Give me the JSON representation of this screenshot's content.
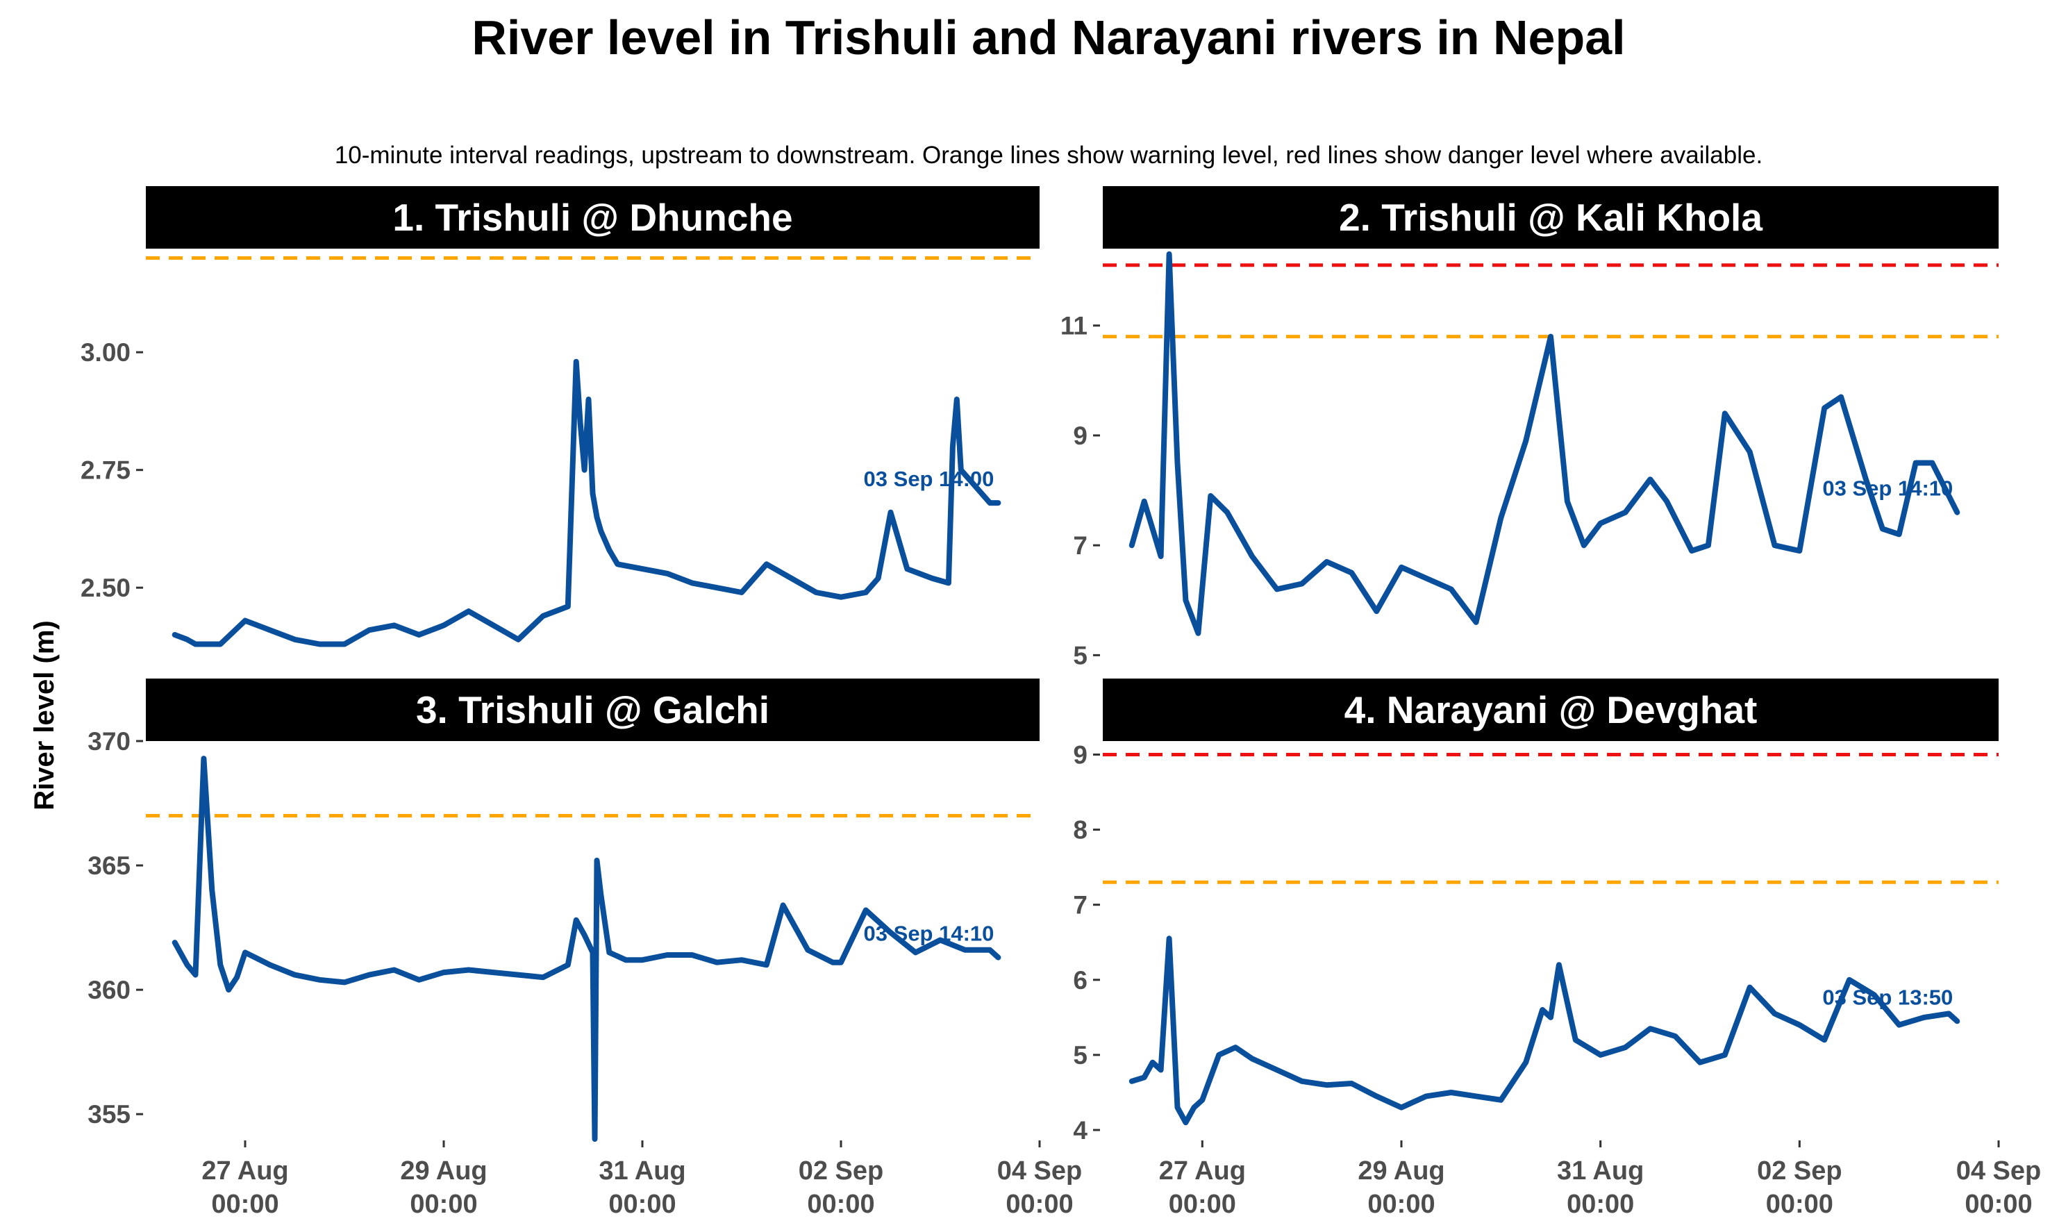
{
  "title": "River level in Trishuli and Narayani rivers in Nepal",
  "subtitle": "10-minute interval readings, upstream to downstream. Orange lines show warning level, red lines show danger level where available.",
  "y_axis_label": "River level (m)",
  "colors": {
    "series": "#0a4f9c",
    "warning": "#ffa500",
    "danger": "#ee1111",
    "strip": "#000000",
    "strip_text": "#ffffff",
    "tick_text": "#4d4d4d"
  },
  "x_ticks": [
    {
      "x": "2024-08-27T00:00",
      "line1": "27 Aug",
      "line2": "00:00"
    },
    {
      "x": "2024-08-29T00:00",
      "line1": "29 Aug",
      "line2": "00:00"
    },
    {
      "x": "2024-08-31T00:00",
      "line1": "31 Aug",
      "line2": "00:00"
    },
    {
      "x": "2024-09-02T00:00",
      "line1": "02 Sep",
      "line2": "00:00"
    },
    {
      "x": "2024-09-04T00:00",
      "line1": "04 Sep",
      "line2": "00:00"
    }
  ],
  "chart_data": [
    {
      "type": "line",
      "panel_title": "1. Trishuli @ Dhunche",
      "xlim": [
        "2024-08-26T00:00",
        "2024-09-04T00:00"
      ],
      "ylim": [
        2.31,
        3.22
      ],
      "y_ticks": [
        2.5,
        2.75,
        3.0
      ],
      "y_tick_labels": [
        "2.50",
        "2.75",
        "3.00"
      ],
      "warning": 3.2,
      "danger": null,
      "last_label": "03 Sep 14:00",
      "series": [
        {
          "x": [
            "2024-08-26T07:00",
            "2024-08-26T10:00",
            "2024-08-26T12:00",
            "2024-08-26T18:00",
            "2024-08-27T00:00",
            "2024-08-27T06:00",
            "2024-08-27T12:00",
            "2024-08-27T18:00",
            "2024-08-28T00:00",
            "2024-08-28T06:00",
            "2024-08-28T12:00",
            "2024-08-28T18:00",
            "2024-08-29T00:00",
            "2024-08-29T06:00",
            "2024-08-29T12:00",
            "2024-08-29T18:00",
            "2024-08-30T00:00",
            "2024-08-30T06:00",
            "2024-08-30T08:00",
            "2024-08-30T09:00",
            "2024-08-30T10:00",
            "2024-08-30T11:00",
            "2024-08-30T12:00",
            "2024-08-30T13:00",
            "2024-08-30T14:00",
            "2024-08-30T16:00",
            "2024-08-30T18:00",
            "2024-08-31T00:00",
            "2024-08-31T06:00",
            "2024-08-31T12:00",
            "2024-08-31T18:00",
            "2024-09-01T00:00",
            "2024-09-01T06:00",
            "2024-09-01T12:00",
            "2024-09-01T18:00",
            "2024-09-02T00:00",
            "2024-09-02T06:00",
            "2024-09-02T09:00",
            "2024-09-02T12:00",
            "2024-09-02T16:00",
            "2024-09-02T22:00",
            "2024-09-03T02:00",
            "2024-09-03T03:00",
            "2024-09-03T04:00",
            "2024-09-03T05:00",
            "2024-09-03T08:00",
            "2024-09-03T12:00",
            "2024-09-03T14:00"
          ],
          "values": [
            2.4,
            2.39,
            2.38,
            2.38,
            2.43,
            2.41,
            2.39,
            2.38,
            2.38,
            2.41,
            2.42,
            2.4,
            2.42,
            2.45,
            2.42,
            2.39,
            2.44,
            2.46,
            2.98,
            2.85,
            2.75,
            2.9,
            2.7,
            2.65,
            2.62,
            2.58,
            2.55,
            2.54,
            2.53,
            2.51,
            2.5,
            2.49,
            2.55,
            2.52,
            2.49,
            2.48,
            2.49,
            2.52,
            2.66,
            2.54,
            2.52,
            2.51,
            2.8,
            2.9,
            2.75,
            2.72,
            2.68,
            2.68
          ]
        }
      ]
    },
    {
      "type": "line",
      "panel_title": "2. Trishuli @ Kali Khola",
      "xlim": [
        "2024-08-26T00:00",
        "2024-09-04T00:00"
      ],
      "ylim": [
        4.6,
        12.4
      ],
      "y_ticks": [
        5,
        7,
        9,
        11
      ],
      "y_tick_labels": [
        "5",
        "7",
        "9",
        "11"
      ],
      "warning": 10.8,
      "danger": 12.1,
      "last_label": "03 Sep 14:10",
      "series": [
        {
          "x": [
            "2024-08-26T07:00",
            "2024-08-26T10:00",
            "2024-08-26T12:00",
            "2024-08-26T14:00",
            "2024-08-26T16:00",
            "2024-08-26T18:00",
            "2024-08-26T20:00",
            "2024-08-26T23:00",
            "2024-08-27T02:00",
            "2024-08-27T06:00",
            "2024-08-27T12:00",
            "2024-08-27T18:00",
            "2024-08-28T00:00",
            "2024-08-28T06:00",
            "2024-08-28T12:00",
            "2024-08-28T18:00",
            "2024-08-29T00:00",
            "2024-08-29T06:00",
            "2024-08-29T12:00",
            "2024-08-29T18:00",
            "2024-08-30T00:00",
            "2024-08-30T06:00",
            "2024-08-30T12:00",
            "2024-08-30T16:00",
            "2024-08-30T20:00",
            "2024-08-31T00:00",
            "2024-08-31T06:00",
            "2024-08-31T12:00",
            "2024-08-31T16:00",
            "2024-08-31T22:00",
            "2024-09-01T02:00",
            "2024-09-01T06:00",
            "2024-09-01T12:00",
            "2024-09-01T18:00",
            "2024-09-02T00:00",
            "2024-09-02T06:00",
            "2024-09-02T10:00",
            "2024-09-02T16:00",
            "2024-09-02T20:00",
            "2024-09-03T00:00",
            "2024-09-03T04:00",
            "2024-09-03T08:00",
            "2024-09-03T14:00"
          ],
          "values": [
            7.0,
            7.8,
            7.3,
            6.8,
            12.3,
            8.5,
            6.0,
            5.4,
            7.9,
            7.6,
            6.8,
            6.2,
            6.3,
            6.7,
            6.5,
            5.8,
            6.6,
            6.4,
            6.2,
            5.6,
            7.5,
            8.9,
            10.8,
            7.8,
            7.0,
            7.4,
            7.6,
            8.2,
            7.8,
            6.9,
            7.0,
            9.4,
            8.7,
            7.0,
            6.9,
            9.5,
            9.7,
            8.2,
            7.3,
            7.2,
            8.5,
            8.5,
            7.6
          ]
        }
      ]
    },
    {
      "type": "line",
      "panel_title": "3. Trishuli @ Galchi",
      "xlim": [
        "2024-08-26T00:00",
        "2024-09-04T00:00"
      ],
      "ylim": [
        354.0,
        370.0
      ],
      "y_ticks": [
        355,
        360,
        365,
        370
      ],
      "y_tick_labels": [
        "355",
        "360",
        "365",
        "370"
      ],
      "warning": 367,
      "danger": null,
      "last_label": "03 Sep 14:10",
      "series": [
        {
          "x": [
            "2024-08-26T07:00",
            "2024-08-26T10:00",
            "2024-08-26T12:00",
            "2024-08-26T14:00",
            "2024-08-26T16:00",
            "2024-08-26T18:00",
            "2024-08-26T20:00",
            "2024-08-26T22:00",
            "2024-08-27T00:00",
            "2024-08-27T06:00",
            "2024-08-27T12:00",
            "2024-08-27T18:00",
            "2024-08-28T00:00",
            "2024-08-28T06:00",
            "2024-08-28T12:00",
            "2024-08-28T18:00",
            "2024-08-29T00:00",
            "2024-08-29T06:00",
            "2024-08-29T12:00",
            "2024-08-29T18:00",
            "2024-08-30T00:00",
            "2024-08-30T06:00",
            "2024-08-30T08:00",
            "2024-08-30T10:00",
            "2024-08-30T12:00",
            "2024-08-30T12:30",
            "2024-08-30T13:00",
            "2024-08-30T14:00",
            "2024-08-30T16:00",
            "2024-08-30T20:00",
            "2024-08-31T00:00",
            "2024-08-31T06:00",
            "2024-08-31T12:00",
            "2024-08-31T18:00",
            "2024-09-01T00:00",
            "2024-09-01T06:00",
            "2024-09-01T10:00",
            "2024-09-01T16:00",
            "2024-09-01T22:00",
            "2024-09-02T00:00",
            "2024-09-02T06:00",
            "2024-09-02T12:00",
            "2024-09-02T18:00",
            "2024-09-03T00:00",
            "2024-09-03T06:00",
            "2024-09-03T12:00",
            "2024-09-03T14:00"
          ],
          "values": [
            361.9,
            361.0,
            360.6,
            369.3,
            364.0,
            361.0,
            360.0,
            360.5,
            361.5,
            361.0,
            360.6,
            360.4,
            360.3,
            360.6,
            360.8,
            360.4,
            360.7,
            360.8,
            360.7,
            360.6,
            360.5,
            361.0,
            362.8,
            362.2,
            361.5,
            354.0,
            365.2,
            363.8,
            361.5,
            361.2,
            361.2,
            361.4,
            361.4,
            361.1,
            361.2,
            361.0,
            363.4,
            361.6,
            361.1,
            361.1,
            363.2,
            362.3,
            361.5,
            362.0,
            361.6,
            361.6,
            361.3
          ]
        }
      ]
    },
    {
      "type": "line",
      "panel_title": "4. Narayani @ Devghat",
      "xlim": [
        "2024-08-26T00:00",
        "2024-09-04T00:00"
      ],
      "ylim": [
        3.88,
        9.18
      ],
      "y_ticks": [
        4,
        5,
        6,
        7,
        8,
        9
      ],
      "y_tick_labels": [
        "4",
        "5",
        "6",
        "7",
        "8",
        "9"
      ],
      "warning": 7.3,
      "danger": 9.0,
      "last_label": "03 Sep 13:50",
      "series": [
        {
          "x": [
            "2024-08-26T07:00",
            "2024-08-26T10:00",
            "2024-08-26T12:00",
            "2024-08-26T14:00",
            "2024-08-26T16:00",
            "2024-08-26T18:00",
            "2024-08-26T20:00",
            "2024-08-26T22:00",
            "2024-08-27T00:00",
            "2024-08-27T04:00",
            "2024-08-27T08:00",
            "2024-08-27T12:00",
            "2024-08-27T18:00",
            "2024-08-28T00:00",
            "2024-08-28T06:00",
            "2024-08-28T12:00",
            "2024-08-28T18:00",
            "2024-08-29T00:00",
            "2024-08-29T06:00",
            "2024-08-29T12:00",
            "2024-08-29T18:00",
            "2024-08-30T00:00",
            "2024-08-30T06:00",
            "2024-08-30T10:00",
            "2024-08-30T12:00",
            "2024-08-30T14:00",
            "2024-08-30T18:00",
            "2024-08-31T00:00",
            "2024-08-31T06:00",
            "2024-08-31T12:00",
            "2024-08-31T18:00",
            "2024-09-01T00:00",
            "2024-09-01T06:00",
            "2024-09-01T12:00",
            "2024-09-01T18:00",
            "2024-09-02T00:00",
            "2024-09-02T06:00",
            "2024-09-02T12:00",
            "2024-09-02T18:00",
            "2024-09-03T00:00",
            "2024-09-03T06:00",
            "2024-09-03T12:00",
            "2024-09-03T14:00"
          ],
          "values": [
            4.65,
            4.7,
            4.9,
            4.8,
            6.55,
            4.3,
            4.1,
            4.3,
            4.4,
            5.0,
            5.1,
            4.95,
            4.8,
            4.65,
            4.6,
            4.62,
            4.45,
            4.3,
            4.45,
            4.5,
            4.45,
            4.4,
            4.9,
            5.6,
            5.5,
            6.2,
            5.2,
            5.0,
            5.1,
            5.35,
            5.25,
            4.9,
            5.0,
            5.9,
            5.55,
            5.4,
            5.2,
            6.0,
            5.8,
            5.4,
            5.5,
            5.55,
            5.45
          ]
        }
      ]
    }
  ]
}
